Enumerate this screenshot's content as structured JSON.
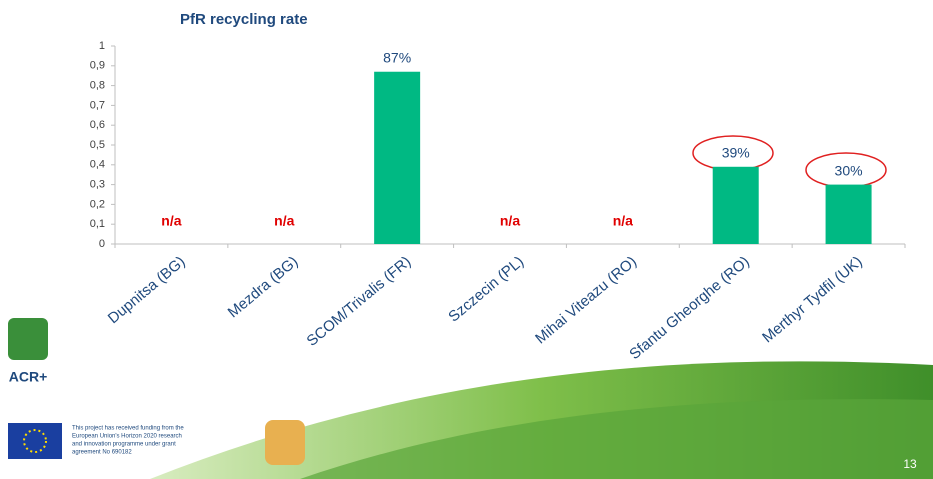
{
  "chart_data": {
    "type": "bar",
    "title": "PfR recycling rate",
    "categories": [
      "Dupnitsa (BG)",
      "Mezdra (BG)",
      "SCOM/Trivalis (FR)",
      "Szczecin (PL)",
      "Mihai Viteazu (RO)",
      "Sfantu Gheorghe (RO)",
      "Merthyr Tydfil (UK)"
    ],
    "values": [
      null,
      null,
      0.87,
      null,
      null,
      0.39,
      0.3
    ],
    "value_labels": [
      "n/a",
      "n/a",
      "87%",
      "n/a",
      "n/a",
      "39%",
      "30%"
    ],
    "color": "#00b983",
    "ylim": [
      0,
      1
    ],
    "yticks": [
      0,
      {
        "value": 0.1,
        "label": "0,1"
      },
      {
        "value": 0.2,
        "label": "0,2"
      },
      {
        "value": 0.3,
        "label": "0,3"
      },
      {
        "value": 0.4,
        "label": "0,4"
      },
      {
        "value": 0.5,
        "label": "0,5"
      },
      {
        "value": 0.6,
        "label": "0,6"
      },
      {
        "value": 0.7,
        "label": "0,7"
      },
      {
        "value": 0.8,
        "label": "0,8"
      },
      {
        "value": 0.9,
        "label": "0,9"
      },
      1
    ],
    "grid": false
  },
  "footer": {
    "logo_text": "ACR+",
    "funding": [
      "This project has received funding from the",
      "European Union's Horizon 2020 research",
      "and innovation programme under grant",
      "agreement No 690182"
    ],
    "page_number": "13"
  }
}
